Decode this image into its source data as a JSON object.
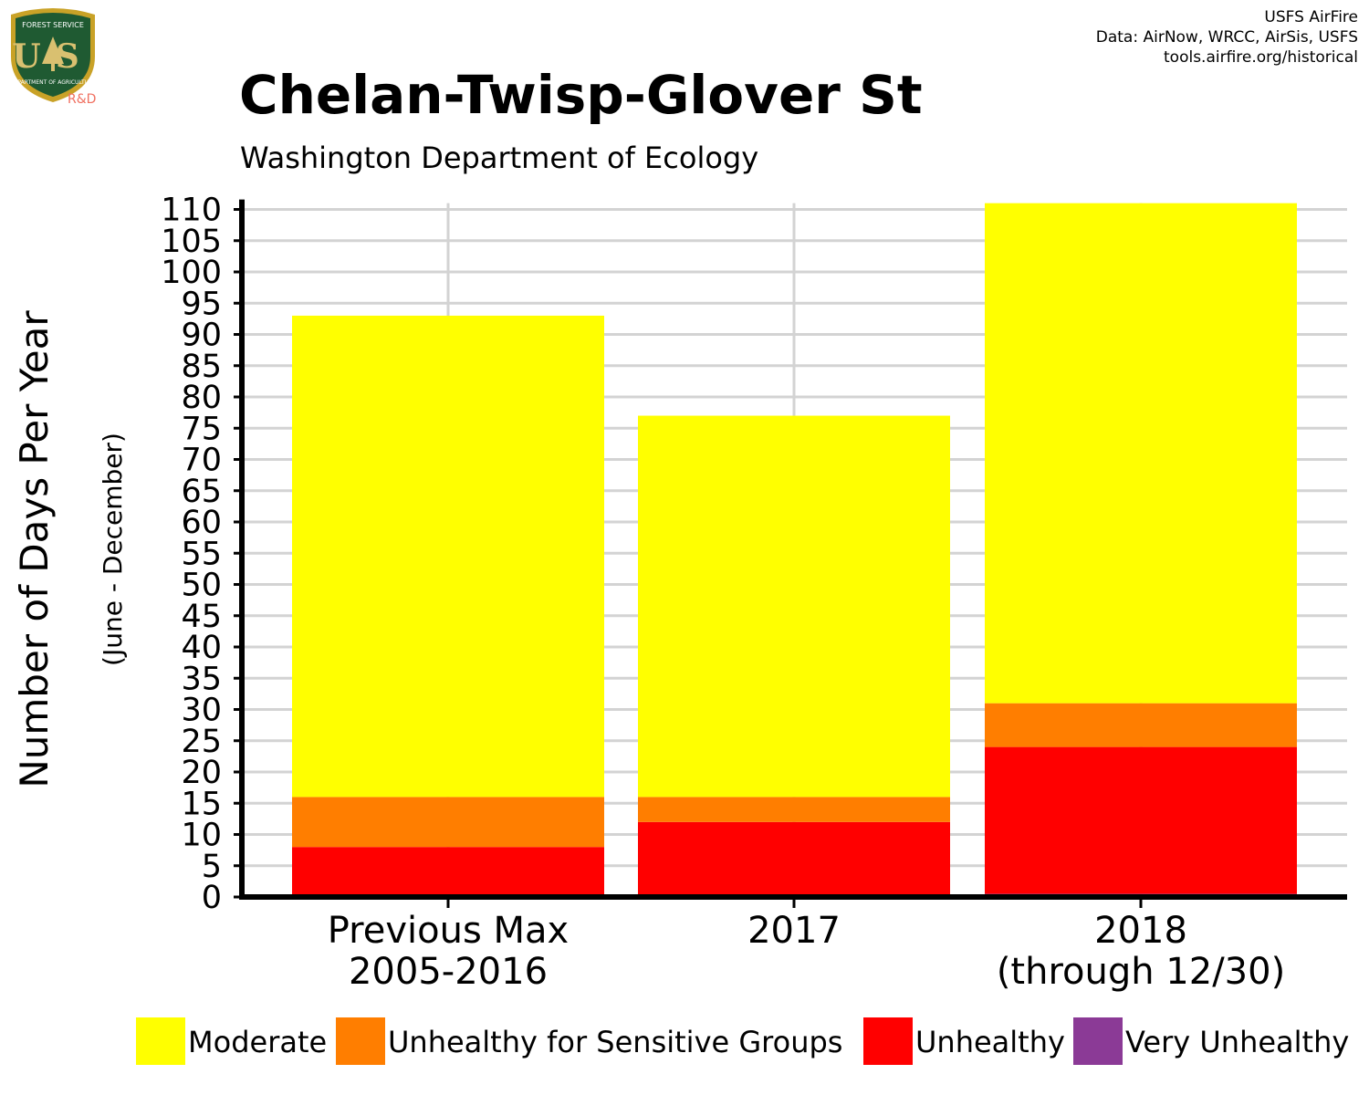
{
  "logo": {
    "shield_top": "FOREST SERVICE",
    "shield_main": "US",
    "shield_bottom": "DEPARTMENT OF AGRICULTURE",
    "badge": "R&D"
  },
  "credits": {
    "line1": "USFS AirFire",
    "line2": "Data: AirNow, WRCC, AirSis, USFS",
    "line3": "tools.airfire.org/historical"
  },
  "chart_data": {
    "type": "bar",
    "stacked": true,
    "title": "Chelan-Twisp-Glover St",
    "subtitle": "Washington Department of Ecology",
    "ylabel": "Number of Days Per Year",
    "ylabel_sub": "(June - December)",
    "categories": [
      [
        "Previous Max",
        "2005-2016"
      ],
      [
        "2017"
      ],
      [
        "2018",
        "(through 12/30)"
      ]
    ],
    "series": [
      {
        "name": "Very Unhealthy",
        "color": "#8b3a96",
        "values": [
          0,
          0,
          0.5
        ]
      },
      {
        "name": "Unhealthy",
        "color": "#ff0000",
        "values": [
          8,
          12,
          23.5
        ]
      },
      {
        "name": "Unhealthy for Sensitive Groups",
        "color": "#ff7e00",
        "values": [
          8,
          4,
          7
        ]
      },
      {
        "name": "Moderate",
        "color": "#ffff00",
        "values": [
          77,
          61,
          80
        ]
      }
    ],
    "legend_order": [
      "Moderate",
      "Unhealthy for Sensitive Groups",
      "Unhealthy",
      "Very Unhealthy"
    ],
    "ylim": [
      0,
      111
    ],
    "yticks": [
      0,
      5,
      10,
      15,
      20,
      25,
      30,
      35,
      40,
      45,
      50,
      55,
      60,
      65,
      70,
      75,
      80,
      85,
      90,
      95,
      100,
      105,
      110
    ],
    "grid": true,
    "legend_position": "bottom"
  }
}
